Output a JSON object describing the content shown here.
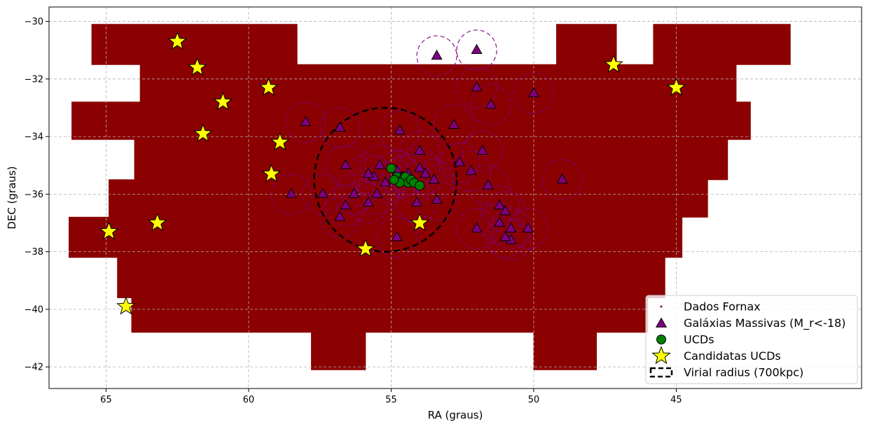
{
  "chart_data": {
    "type": "scatter",
    "xlabel": "RA (graus)",
    "ylabel": "DEC (graus)",
    "xlim": [
      67.0,
      38.5
    ],
    "ylim": [
      -42.75,
      -29.5
    ],
    "x_ticks": [
      65,
      60,
      55,
      50,
      45
    ],
    "y_ticks": [
      -30,
      -32,
      -34,
      -36,
      -38,
      -40,
      -42
    ],
    "grid": true,
    "legend_position": "lower-right",
    "colors": {
      "survey": "#8b0000",
      "massive": "#800080",
      "ucd": "#008000",
      "candidate": "#ffff00",
      "circle": "#800080",
      "virial": "#000000"
    },
    "legend": [
      {
        "label": "Dados Fornax",
        "marker": "dot"
      },
      {
        "label": "Galáxias Massivas (M_r<-18)",
        "marker": "triangle"
      },
      {
        "label": "UCDs",
        "marker": "circle"
      },
      {
        "label": "Candidatas UCDs",
        "marker": "star"
      },
      {
        "label": "Virial radius (700kpc)",
        "marker": "dashed-box"
      }
    ],
    "survey_footprint": [
      [
        65.5,
        -30.1
      ],
      [
        58.3,
        -30.1
      ],
      [
        58.3,
        -31.5
      ],
      [
        63.8,
        -31.5
      ],
      [
        63.8,
        -32.8
      ],
      [
        66.2,
        -32.8
      ],
      [
        66.2,
        -34.1
      ],
      [
        64.0,
        -34.1
      ],
      [
        64.0,
        -35.5
      ],
      [
        64.9,
        -35.5
      ],
      [
        64.9,
        -36.8
      ],
      [
        66.3,
        -36.8
      ],
      [
        66.3,
        -38.2
      ],
      [
        64.6,
        -38.2
      ],
      [
        64.6,
        -39.6
      ],
      [
        64.1,
        -39.6
      ],
      [
        64.1,
        -40.8
      ],
      [
        57.8,
        -40.8
      ],
      [
        57.8,
        -42.1
      ],
      [
        55.9,
        -42.1
      ],
      [
        55.9,
        -40.8
      ],
      [
        50.0,
        -40.8
      ],
      [
        50.0,
        -42.1
      ],
      [
        47.8,
        -42.1
      ],
      [
        47.8,
        -40.8
      ],
      [
        46.0,
        -40.8
      ],
      [
        46.0,
        -39.6
      ],
      [
        45.4,
        -39.6
      ],
      [
        45.4,
        -38.2
      ],
      [
        44.8,
        -38.2
      ],
      [
        44.8,
        -36.8
      ],
      [
        43.9,
        -36.8
      ],
      [
        43.9,
        -35.5
      ],
      [
        43.2,
        -35.5
      ],
      [
        43.2,
        -34.1
      ],
      [
        42.4,
        -34.1
      ],
      [
        42.4,
        -32.8
      ],
      [
        42.9,
        -32.8
      ],
      [
        42.9,
        -31.5
      ],
      [
        41.0,
        -31.5
      ],
      [
        41.0,
        -30.1
      ],
      [
        45.8,
        -30.1
      ],
      [
        45.8,
        -31.5
      ],
      [
        47.1,
        -31.5
      ],
      [
        47.1,
        -30.1
      ],
      [
        49.2,
        -30.1
      ],
      [
        49.2,
        -31.5
      ],
      [
        65.5,
        -31.5
      ]
    ],
    "virial_radius": {
      "ra": 55.2,
      "dec": -35.5,
      "radius": 2.5
    },
    "massive_galaxy_circle_radius": 0.7,
    "massive_galaxies": [
      [
        53.4,
        -31.2
      ],
      [
        52.0,
        -31.0
      ],
      [
        52.0,
        -32.3
      ],
      [
        51.5,
        -32.9
      ],
      [
        50.0,
        -32.5
      ],
      [
        58.0,
        -33.5
      ],
      [
        56.8,
        -33.7
      ],
      [
        54.7,
        -33.8
      ],
      [
        52.8,
        -33.6
      ],
      [
        54.0,
        -34.5
      ],
      [
        51.8,
        -34.5
      ],
      [
        52.6,
        -34.9
      ],
      [
        52.2,
        -35.2
      ],
      [
        51.6,
        -35.7
      ],
      [
        49.0,
        -35.5
      ],
      [
        56.6,
        -35.0
      ],
      [
        55.4,
        -35.0
      ],
      [
        55.6,
        -35.4
      ],
      [
        55.8,
        -35.3
      ],
      [
        55.2,
        -35.6
      ],
      [
        54.8,
        -35.2
      ],
      [
        54.6,
        -35.4
      ],
      [
        54.4,
        -35.3
      ],
      [
        54.2,
        -35.6
      ],
      [
        54.0,
        -35.1
      ],
      [
        53.8,
        -35.3
      ],
      [
        53.5,
        -35.5
      ],
      [
        53.4,
        -36.2
      ],
      [
        54.1,
        -36.3
      ],
      [
        55.5,
        -36.0
      ],
      [
        56.3,
        -36.0
      ],
      [
        56.6,
        -36.4
      ],
      [
        56.8,
        -36.8
      ],
      [
        55.8,
        -36.3
      ],
      [
        57.4,
        -36.0
      ],
      [
        58.5,
        -36.0
      ],
      [
        54.8,
        -37.5
      ],
      [
        51.2,
        -36.4
      ],
      [
        51.0,
        -36.6
      ],
      [
        50.8,
        -37.2
      ],
      [
        51.2,
        -37.0
      ],
      [
        50.2,
        -37.2
      ],
      [
        50.8,
        -37.6
      ],
      [
        52.0,
        -37.2
      ],
      [
        51.0,
        -37.5
      ]
    ],
    "ucds": [
      [
        55.0,
        -35.1
      ],
      [
        54.8,
        -35.4
      ],
      [
        54.6,
        -35.5
      ],
      [
        54.5,
        -35.4
      ],
      [
        54.4,
        -35.6
      ],
      [
        54.3,
        -35.5
      ],
      [
        54.7,
        -35.6
      ],
      [
        54.2,
        -35.6
      ],
      [
        54.0,
        -35.7
      ],
      [
        54.9,
        -35.5
      ]
    ],
    "candidates": [
      [
        62.5,
        -30.7
      ],
      [
        61.8,
        -31.6
      ],
      [
        60.9,
        -32.8
      ],
      [
        61.6,
        -33.9
      ],
      [
        59.3,
        -32.3
      ],
      [
        58.9,
        -34.2
      ],
      [
        59.2,
        -35.3
      ],
      [
        64.9,
        -37.3
      ],
      [
        63.2,
        -37.0
      ],
      [
        64.3,
        -39.9
      ],
      [
        55.9,
        -37.9
      ],
      [
        54.0,
        -37.0
      ],
      [
        47.2,
        -31.5
      ],
      [
        45.0,
        -32.3
      ]
    ]
  }
}
